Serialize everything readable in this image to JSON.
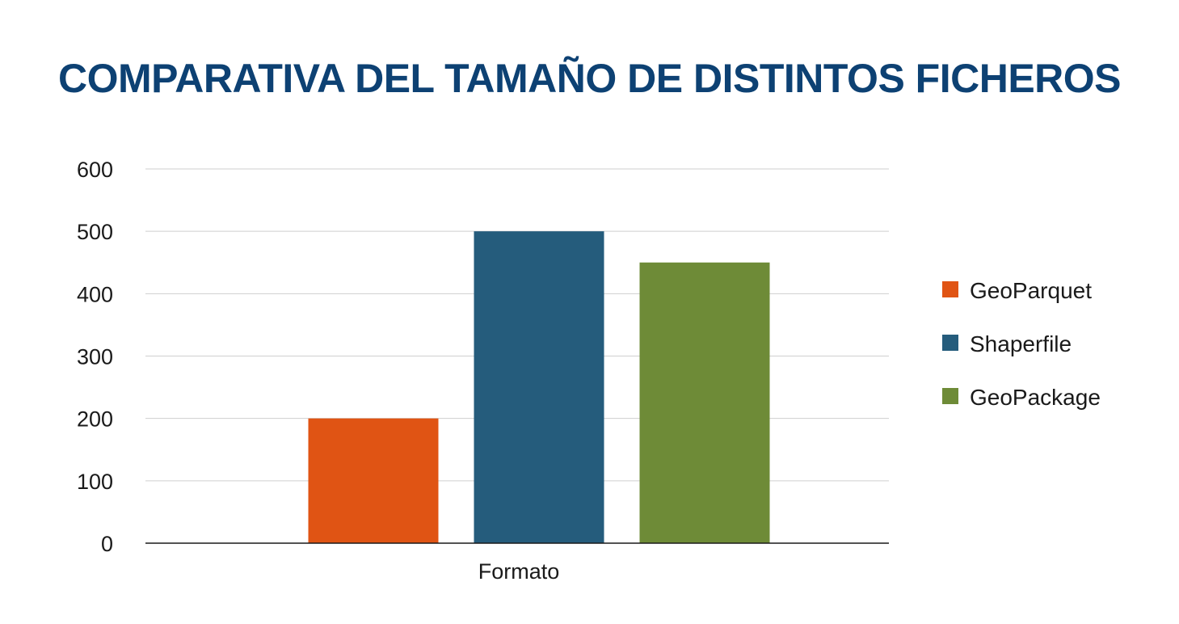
{
  "chart_data": {
    "type": "bar",
    "title": "COMPARATIVA DEL TAMAÑO DE DISTINTOS FICHEROS",
    "categories": [
      "Formato"
    ],
    "series": [
      {
        "name": "GeoParquet",
        "values": [
          200
        ],
        "color": "#e05414"
      },
      {
        "name": "Shaperfile",
        "values": [
          500
        ],
        "color": "#255c7c"
      },
      {
        "name": "GeoPackage",
        "values": [
          450
        ],
        "color": "#6e8b37"
      }
    ],
    "ylim": [
      0,
      600
    ],
    "yticks": [
      0,
      100,
      200,
      300,
      400,
      500,
      600
    ],
    "grid": true,
    "legend": "right"
  }
}
